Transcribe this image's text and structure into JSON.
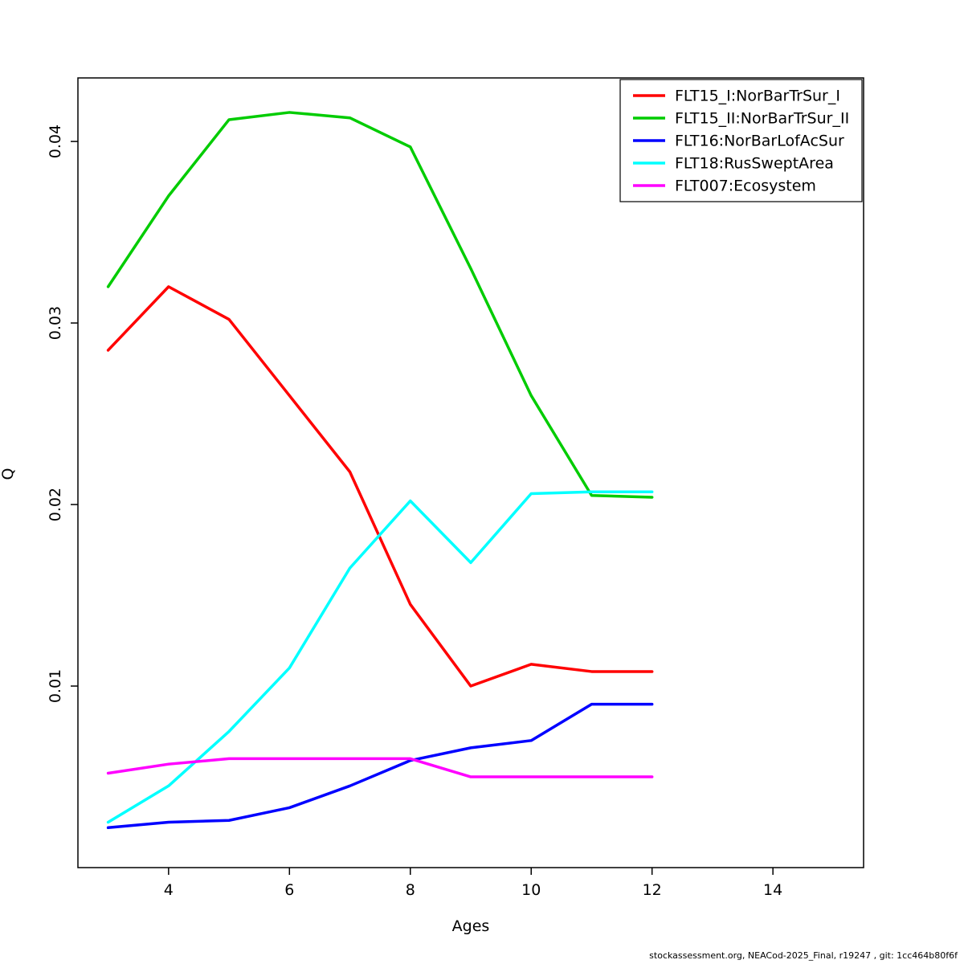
{
  "figure": {
    "xlabel": "Ages",
    "ylabel": "Q",
    "footer": "stockassessment.org, NEACod-2025_Final, r19247 , git: 1cc464b80f6f"
  },
  "chart_data": {
    "type": "line",
    "title": "",
    "xlabel": "Ages",
    "ylabel": "Q",
    "x": [
      3,
      4,
      5,
      6,
      7,
      8,
      9,
      10,
      11,
      12
    ],
    "xlim": [
      2.5,
      15.5
    ],
    "ylim": [
      0,
      0.0435
    ],
    "x_ticks": [
      4,
      6,
      8,
      10,
      12,
      14
    ],
    "y_ticks": [
      0.01,
      0.02,
      0.03,
      0.04
    ],
    "grid": false,
    "legend_position": "top-right",
    "series": [
      {
        "name": "FLT15_I:NorBarTrSur_I",
        "color": "#ff0000",
        "values": [
          0.0285,
          0.032,
          0.0302,
          0.026,
          0.0218,
          0.0145,
          0.01,
          0.0112,
          0.0108,
          0.0108
        ]
      },
      {
        "name": "FLT15_II:NorBarTrSur_II",
        "color": "#00cc00",
        "values": [
          0.032,
          0.037,
          0.0412,
          0.0416,
          0.0413,
          0.0397,
          0.033,
          0.026,
          0.0205,
          0.0204
        ]
      },
      {
        "name": "FLT16:NorBarLofAcSur",
        "color": "#0000ff",
        "values": [
          0.0022,
          0.0025,
          0.0026,
          0.0033,
          0.0045,
          0.0059,
          0.0066,
          0.007,
          0.009,
          0.009
        ]
      },
      {
        "name": "FLT18:RusSweptArea",
        "color": "#00ffff",
        "values": [
          0.0025,
          0.0045,
          0.0075,
          0.011,
          0.0165,
          0.0202,
          0.0168,
          0.0206,
          0.0207,
          0.0207
        ]
      },
      {
        "name": "FLT007:Ecosystem",
        "color": "#ff00ff",
        "values": [
          0.0052,
          0.0057,
          0.006,
          0.006,
          0.006,
          0.006,
          0.005,
          0.005,
          0.005,
          0.005
        ]
      }
    ]
  }
}
